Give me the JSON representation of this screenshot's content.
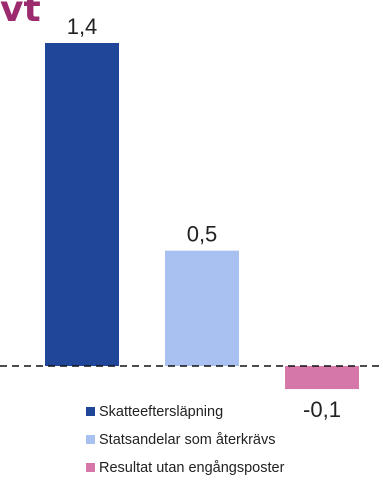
{
  "title_fragment": "vt",
  "chart_data": {
    "type": "bar",
    "title": "",
    "xlabel": "",
    "ylabel": "",
    "categories": [
      "Skatteeftersläpning",
      "Statsandelar som återkrävs",
      "Resultat utan engångsposter"
    ],
    "values": [
      1.4,
      0.5,
      -0.1
    ],
    "data_labels": [
      "1,4",
      "0,5",
      "-0,1"
    ],
    "colors": [
      "#1f4699",
      "#a9c1f0",
      "#d577a8"
    ],
    "baseline": 0,
    "baseline_style": "dashed",
    "ylim": [
      -0.15,
      1.4
    ],
    "grid": false,
    "legend": "bottom"
  }
}
